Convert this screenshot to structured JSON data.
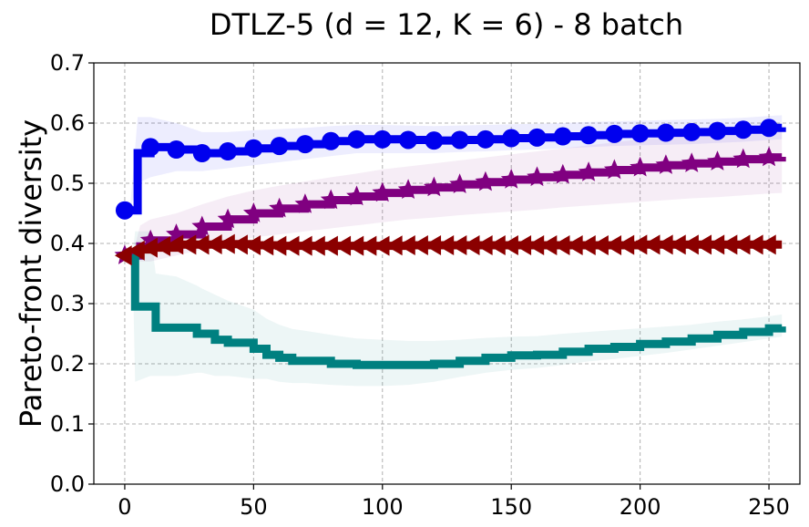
{
  "chart_data": {
    "type": "line",
    "title": "DTLZ-5 (d = 12, K = 6) - 8 batch",
    "xlabel": "",
    "ylabel": "Pareto-front diversity",
    "xlim": [
      -12,
      262
    ],
    "ylim": [
      0.0,
      0.7
    ],
    "xticks": [
      0,
      50,
      100,
      150,
      200,
      250
    ],
    "yticks": [
      0.0,
      0.1,
      0.2,
      0.3,
      0.4,
      0.5,
      0.6,
      0.7
    ],
    "xtick_labels": [
      "0",
      "50",
      "100",
      "150",
      "200",
      "250"
    ],
    "ytick_labels": [
      "0.0",
      "0.1",
      "0.2",
      "0.3",
      "0.4",
      "0.5",
      "0.6",
      "0.7"
    ],
    "grid": true,
    "series": [
      {
        "name": "blue-circle",
        "color": "#0000ee",
        "marker": "circle",
        "x": [
          0,
          2,
          5,
          10,
          20,
          30,
          40,
          50,
          60,
          70,
          80,
          90,
          100,
          110,
          120,
          130,
          140,
          150,
          160,
          170,
          180,
          190,
          200,
          210,
          220,
          230,
          240,
          250,
          255
        ],
        "y": [
          0.455,
          0.455,
          0.55,
          0.56,
          0.556,
          0.55,
          0.553,
          0.558,
          0.562,
          0.565,
          0.57,
          0.573,
          0.573,
          0.572,
          0.571,
          0.572,
          0.573,
          0.575,
          0.576,
          0.578,
          0.58,
          0.582,
          0.583,
          0.584,
          0.585,
          0.587,
          0.589,
          0.592,
          0.593
        ],
        "band_lower": [
          0.455,
          0.455,
          0.5,
          0.51,
          0.52,
          0.52,
          0.525,
          0.53,
          0.535,
          0.54,
          0.545,
          0.55,
          0.55,
          0.55,
          0.55,
          0.552,
          0.553,
          0.555,
          0.556,
          0.558,
          0.56,
          0.562,
          0.563,
          0.564,
          0.565,
          0.567,
          0.569,
          0.572,
          0.573
        ],
        "band_upper": [
          0.455,
          0.455,
          0.61,
          0.61,
          0.6,
          0.585,
          0.585,
          0.588,
          0.59,
          0.592,
          0.595,
          0.597,
          0.597,
          0.596,
          0.595,
          0.596,
          0.597,
          0.598,
          0.599,
          0.6,
          0.602,
          0.603,
          0.604,
          0.605,
          0.606,
          0.607,
          0.609,
          0.612,
          0.613
        ],
        "marker_every": 10
      },
      {
        "name": "purple-star",
        "color": "#800080",
        "marker": "star",
        "x": [
          0,
          3,
          6,
          10,
          20,
          30,
          40,
          50,
          60,
          70,
          80,
          90,
          100,
          110,
          120,
          130,
          140,
          150,
          160,
          170,
          180,
          190,
          200,
          210,
          220,
          230,
          240,
          250,
          255
        ],
        "y": [
          0.38,
          0.38,
          0.395,
          0.405,
          0.415,
          0.428,
          0.44,
          0.45,
          0.458,
          0.465,
          0.472,
          0.478,
          0.484,
          0.489,
          0.493,
          0.498,
          0.502,
          0.506,
          0.51,
          0.514,
          0.518,
          0.522,
          0.526,
          0.53,
          0.533,
          0.536,
          0.54,
          0.543,
          0.544
        ],
        "band_lower": [
          0.38,
          0.38,
          0.37,
          0.37,
          0.38,
          0.39,
          0.4,
          0.41,
          0.415,
          0.42,
          0.425,
          0.43,
          0.435,
          0.44,
          0.443,
          0.447,
          0.45,
          0.453,
          0.456,
          0.46,
          0.463,
          0.466,
          0.469,
          0.472,
          0.475,
          0.477,
          0.48,
          0.483,
          0.484
        ],
        "band_upper": [
          0.38,
          0.38,
          0.43,
          0.44,
          0.45,
          0.465,
          0.478,
          0.488,
          0.496,
          0.503,
          0.51,
          0.516,
          0.523,
          0.528,
          0.533,
          0.538,
          0.543,
          0.548,
          0.553,
          0.558,
          0.563,
          0.568,
          0.573,
          0.578,
          0.582,
          0.586,
          0.59,
          0.595,
          0.596
        ],
        "marker_every": 10
      },
      {
        "name": "darkred-triangle",
        "color": "#8b0000",
        "marker": "triangle-left",
        "x": [
          0,
          3,
          6,
          10,
          20,
          30,
          40,
          50,
          60,
          70,
          80,
          90,
          100,
          110,
          120,
          130,
          140,
          150,
          160,
          170,
          180,
          190,
          200,
          210,
          220,
          230,
          240,
          250,
          255
        ],
        "y": [
          0.38,
          0.385,
          0.39,
          0.393,
          0.398,
          0.398,
          0.399,
          0.397,
          0.396,
          0.396,
          0.396,
          0.396,
          0.396,
          0.397,
          0.397,
          0.397,
          0.397,
          0.397,
          0.397,
          0.397,
          0.397,
          0.397,
          0.398,
          0.398,
          0.398,
          0.398,
          0.398,
          0.398,
          0.398
        ],
        "band_lower": [
          0.38,
          0.385,
          0.385,
          0.387,
          0.39,
          0.392,
          0.393,
          0.392,
          0.391,
          0.391,
          0.391,
          0.391,
          0.391,
          0.392,
          0.392,
          0.392,
          0.392,
          0.392,
          0.392,
          0.392,
          0.392,
          0.392,
          0.393,
          0.393,
          0.393,
          0.393,
          0.393,
          0.393,
          0.393
        ],
        "band_upper": [
          0.38,
          0.385,
          0.395,
          0.399,
          0.405,
          0.405,
          0.406,
          0.403,
          0.402,
          0.402,
          0.402,
          0.402,
          0.402,
          0.402,
          0.402,
          0.402,
          0.402,
          0.402,
          0.402,
          0.402,
          0.402,
          0.402,
          0.403,
          0.403,
          0.403,
          0.403,
          0.403,
          0.403,
          0.403
        ],
        "marker_every": 5
      },
      {
        "name": "teal-line",
        "color": "#008080",
        "marker": "none",
        "x": [
          0,
          3,
          4,
          10,
          12,
          20,
          28,
          30,
          35,
          40,
          50,
          55,
          60,
          65,
          70,
          80,
          90,
          100,
          110,
          120,
          130,
          140,
          150,
          160,
          170,
          180,
          190,
          200,
          210,
          220,
          230,
          240,
          250,
          255
        ],
        "y": [
          0.38,
          0.38,
          0.295,
          0.295,
          0.26,
          0.26,
          0.25,
          0.25,
          0.24,
          0.235,
          0.225,
          0.215,
          0.21,
          0.205,
          0.205,
          0.2,
          0.198,
          0.198,
          0.198,
          0.2,
          0.205,
          0.21,
          0.214,
          0.215,
          0.22,
          0.225,
          0.228,
          0.233,
          0.237,
          0.242,
          0.248,
          0.253,
          0.259,
          0.262
        ],
        "band_lower": [
          0.38,
          0.38,
          0.17,
          0.18,
          0.18,
          0.18,
          0.185,
          0.185,
          0.18,
          0.18,
          0.175,
          0.175,
          0.17,
          0.168,
          0.168,
          0.165,
          0.163,
          0.163,
          0.165,
          0.17,
          0.178,
          0.185,
          0.19,
          0.193,
          0.198,
          0.204,
          0.208,
          0.213,
          0.218,
          0.224,
          0.23,
          0.236,
          0.242,
          0.245
        ],
        "band_upper": [
          0.38,
          0.38,
          0.42,
          0.42,
          0.35,
          0.345,
          0.33,
          0.325,
          0.315,
          0.305,
          0.29,
          0.275,
          0.265,
          0.258,
          0.255,
          0.248,
          0.242,
          0.24,
          0.238,
          0.238,
          0.24,
          0.243,
          0.245,
          0.246,
          0.25,
          0.253,
          0.256,
          0.259,
          0.262,
          0.265,
          0.27,
          0.274,
          0.279,
          0.282
        ],
        "marker_every": 0
      }
    ]
  }
}
